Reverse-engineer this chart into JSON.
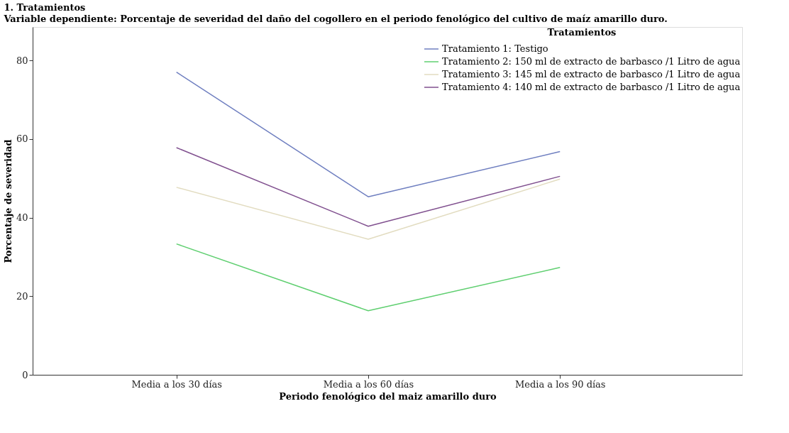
{
  "chart_data": {
    "type": "line",
    "title": "1. Tratamientos",
    "subtitle": "Variable dependiente: Porcentaje de severidad del daño del cogollero en el periodo fenológico del cultivo de maíz amarillo duro.",
    "xlabel": "Periodo fenológico del maiz amarillo duro",
    "ylabel": "Porcentaje de severidad",
    "legend_title": "Tratamientos",
    "categories": [
      "Media a los 30 días",
      "Media a los 60 días",
      "Media a los 90 días"
    ],
    "series": [
      {
        "name": "Tratamiento 1: Testigo",
        "color": "#6f7fc0",
        "values": [
          77.0,
          45.3,
          56.8
        ]
      },
      {
        "name": "Tratamiento 2: 150 ml de extracto de barbasco /1 Litro de agua",
        "color": "#5fcf70",
        "values": [
          33.3,
          16.3,
          27.3
        ]
      },
      {
        "name": "Tratamiento 3: 145 ml de extracto de barbasco /1 Litro de agua",
        "color": "#e2dcc0",
        "values": [
          47.7,
          34.5,
          49.8
        ]
      },
      {
        "name": "Tratamiento 4: 140 ml de extracto de barbasco /1 Litro de agua",
        "color": "#80508f",
        "values": [
          57.8,
          37.8,
          50.5
        ]
      }
    ],
    "ylim": [
      0,
      88.5
    ],
    "yticks": [
      0,
      20,
      40,
      60,
      80
    ],
    "grid": false,
    "legend": "top right",
    "marker": "none",
    "line_style": "solid"
  }
}
